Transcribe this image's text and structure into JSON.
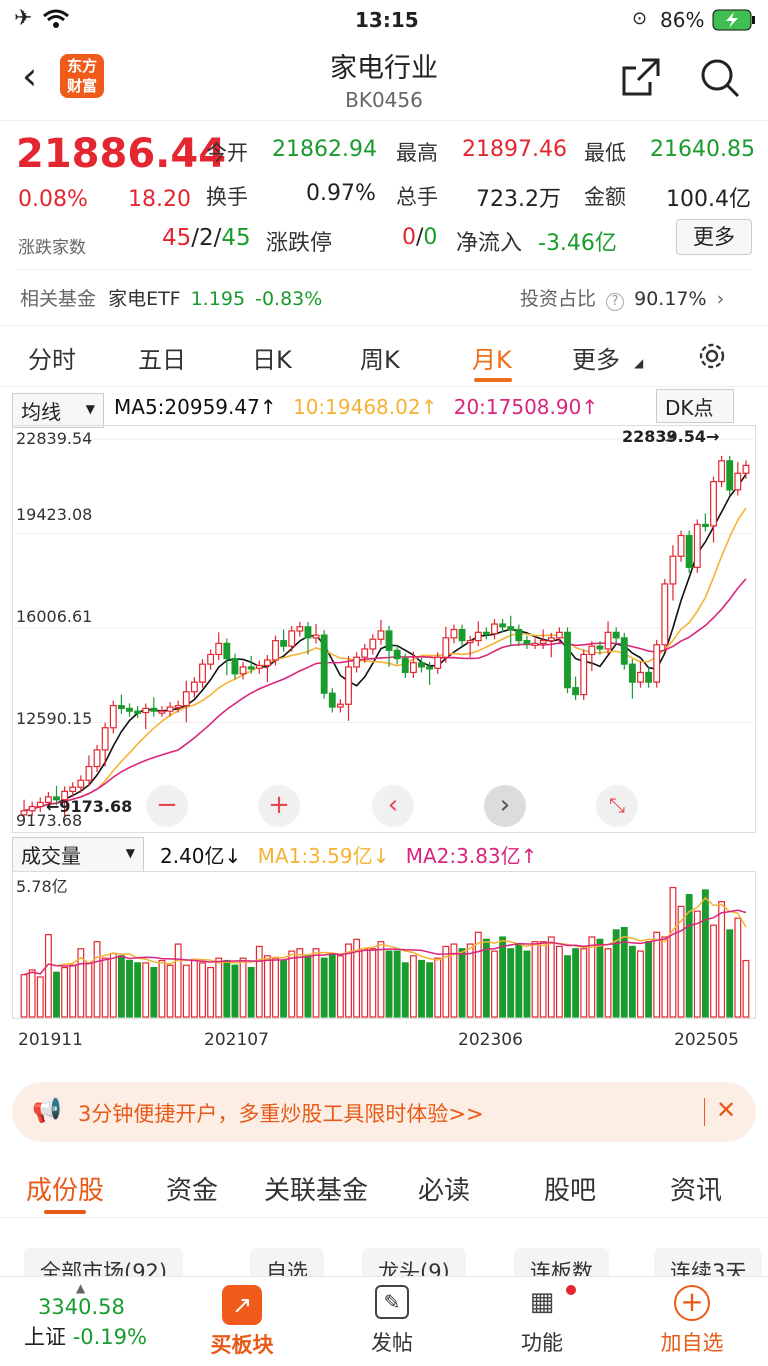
{
  "status": {
    "time": "13:15",
    "battery": "86%"
  },
  "nav": {
    "title": "家电行业",
    "code": "BK0456",
    "logo_line1": "东方",
    "logo_line2": "财富"
  },
  "quote": {
    "price": "21886.44",
    "pct": "0.08%",
    "change": "18.20",
    "open_label": "今开",
    "open": "21862.94",
    "high_label": "最高",
    "high": "21897.46",
    "low_label": "最低",
    "low": "21640.85",
    "turnover_label": "换手",
    "turnover": "0.97%",
    "vol_label": "总手",
    "vol": "723.2万",
    "amount_label": "金额",
    "amount": "100.4亿",
    "breadth_label": "涨跌家数",
    "up": "45",
    "flat": "2",
    "down": "45",
    "slash": "/",
    "limit_label": "涨跌停",
    "limit_up": "0",
    "limit_down": "0",
    "flow_label": "净流入",
    "flow": "-3.46亿",
    "more": "更多",
    "fund_label": "相关基金",
    "fund_name": "家电ETF",
    "fund_price": "1.195",
    "fund_pct": "-0.83%",
    "ratio_label": "投资占比",
    "ratio": "90.17%"
  },
  "tabs": [
    "分时",
    "五日",
    "日K",
    "周K",
    "月K",
    "更多"
  ],
  "chart": {
    "ma_select": "均线",
    "ma5": "MA5:20959.47",
    "ma10": "10:19468.02",
    "ma20": "20:17508.90",
    "dk": "DK点",
    "ylabels": [
      "22839.54",
      "19423.08",
      "16006.61",
      "12590.15",
      "9173.68"
    ],
    "max_label": "22839.54→",
    "min_label": "←9173.68",
    "vol_select": "成交量",
    "vol_cur": "2.40亿",
    "vol_ma1": "MA1:3.59亿",
    "vol_ma2": "MA2:3.83亿",
    "vol_max": "5.78亿",
    "dates": [
      "201911",
      "202107",
      "202306",
      "202505"
    ],
    "colors": {
      "up": "#e3262f",
      "down": "#1a9b2e",
      "ma5": "#111111",
      "ma10": "#f5b335",
      "ma20": "#d9257d"
    }
  },
  "chart_data": {
    "type": "candlestick",
    "ylim": [
      9173.68,
      22839.54
    ],
    "close": [
      9400,
      9550,
      9700,
      9900,
      9800,
      10100,
      10250,
      10500,
      11000,
      11600,
      12400,
      13200,
      13100,
      13000,
      12950,
      13100,
      13000,
      13000,
      13150,
      13200,
      13700,
      14050,
      14700,
      15050,
      15450,
      14900,
      14350,
      14600,
      14550,
      14650,
      14850,
      15550,
      15350,
      15900,
      16050,
      15650,
      15750,
      13650,
      13150,
      13250,
      14600,
      14950,
      15250,
      15600,
      15900,
      15200,
      14900,
      14400,
      14750,
      14600,
      14550,
      14950,
      15650,
      15950,
      15550,
      15550,
      15850,
      15800,
      16150,
      16050,
      15950,
      15550,
      15450,
      15450,
      15550,
      15650,
      15850,
      13850,
      13600,
      15050,
      15350,
      15250,
      15850,
      15650,
      14700,
      14050,
      14400,
      14050,
      15400,
      17600,
      18600,
      19350,
      18200,
      19750,
      19700,
      21300,
      22050,
      21000,
      21600,
      21886
    ],
    "ma5": 20959.47,
    "ma10": 19468.02,
    "ma20": 17508.9,
    "volume": [
      1.8,
      2.0,
      1.7,
      3.5,
      1.9,
      2.1,
      2.2,
      2.9,
      2.3,
      3.2,
      2.5,
      2.7,
      2.6,
      2.4,
      2.3,
      2.3,
      2.1,
      2.4,
      2.2,
      3.1,
      2.2,
      2.4,
      2.3,
      2.1,
      2.5,
      2.4,
      2.2,
      2.5,
      2.1,
      3.0,
      2.6,
      2.5,
      2.4,
      2.8,
      2.9,
      2.6,
      2.9,
      2.5,
      2.7,
      2.6,
      3.1,
      3.3,
      2.9,
      2.9,
      3.2,
      2.8,
      2.8,
      2.3,
      2.6,
      2.4,
      2.3,
      2.5,
      3.0,
      3.1,
      2.9,
      3.1,
      3.6,
      3.3,
      2.8,
      3.4,
      2.9,
      3.1,
      2.8,
      3.2,
      3.2,
      3.4,
      3.0,
      2.6,
      2.9,
      2.9,
      3.4,
      3.3,
      2.9,
      3.7,
      3.8,
      3.0,
      2.8,
      3.2,
      3.6,
      3.4,
      5.5,
      4.7,
      5.2,
      4.5,
      5.4,
      3.9,
      4.9,
      3.7,
      4.2,
      2.4
    ],
    "vol_max": 5.78,
    "vol_ma1": 3.59,
    "vol_ma2": 3.83
  },
  "promo": {
    "text": "3分钟便捷开户，多重炒股工具限时体验>>"
  },
  "subtabs": [
    "成份股",
    "资金",
    "关联基金",
    "必读",
    "股吧",
    "资讯"
  ],
  "filters": [
    "全部市场(92)",
    "自选",
    "龙头(9)",
    "连板数",
    "连续3天"
  ],
  "bottom": {
    "index_val": "3340.58",
    "index_name": "上证",
    "index_pct": "-0.19%",
    "buy": "买板块",
    "post": "发帖",
    "func": "功能",
    "add": "加自选"
  }
}
